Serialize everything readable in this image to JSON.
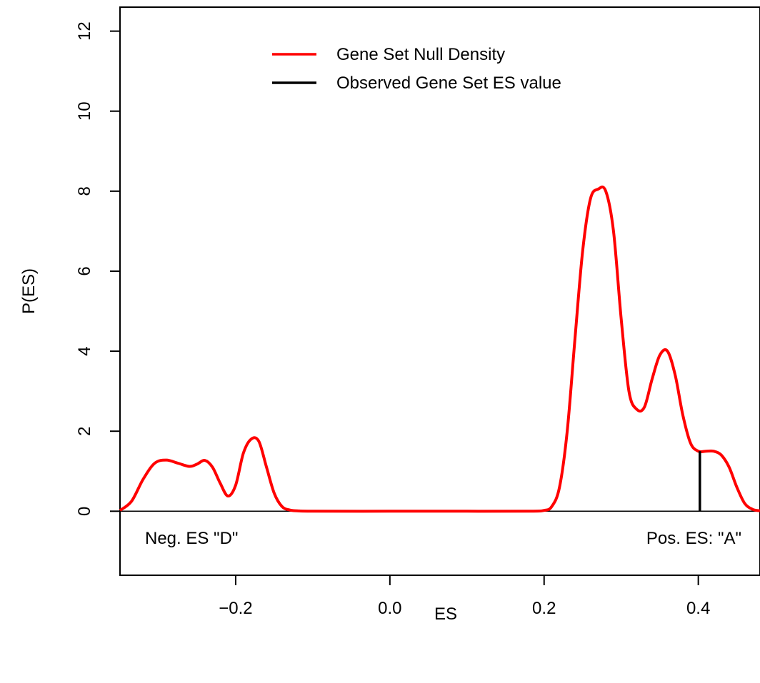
{
  "chart_data": {
    "type": "line",
    "xlabel": "ES",
    "ylabel": "P(ES)",
    "xlim": [
      -0.35,
      0.48
    ],
    "ylim": [
      -1.6,
      12.6
    ],
    "x_ticks": [
      -0.2,
      0.0,
      0.2,
      0.4
    ],
    "x_tick_labels": [
      "−0.2",
      "0.0",
      "0.2",
      "0.4"
    ],
    "y_ticks": [
      0,
      2,
      4,
      6,
      8,
      10,
      12
    ],
    "y_tick_labels": [
      "0",
      "2",
      "4",
      "6",
      "8",
      "10",
      "12"
    ],
    "grid": false,
    "legend_position": "top-center",
    "series": [
      {
        "name": "Gene Set Null Density",
        "color": "#ff0000",
        "x": [
          -0.35,
          -0.335,
          -0.32,
          -0.305,
          -0.29,
          -0.275,
          -0.26,
          -0.25,
          -0.24,
          -0.23,
          -0.22,
          -0.21,
          -0.2,
          -0.19,
          -0.18,
          -0.17,
          -0.16,
          -0.15,
          -0.14,
          -0.13,
          -0.12,
          -0.1,
          0.0,
          0.1,
          0.18,
          0.2,
          0.21,
          0.22,
          0.23,
          0.24,
          0.25,
          0.26,
          0.27,
          0.28,
          0.29,
          0.3,
          0.31,
          0.32,
          0.33,
          0.34,
          0.35,
          0.36,
          0.37,
          0.38,
          0.39,
          0.4,
          0.41,
          0.42,
          0.43,
          0.44,
          0.45,
          0.46,
          0.47,
          0.48
        ],
        "y": [
          0.02,
          0.25,
          0.8,
          1.2,
          1.28,
          1.2,
          1.12,
          1.18,
          1.27,
          1.1,
          0.7,
          0.38,
          0.65,
          1.45,
          1.8,
          1.75,
          1.1,
          0.45,
          0.12,
          0.03,
          0.01,
          0.0,
          0.0,
          0.0,
          0.0,
          0.02,
          0.12,
          0.6,
          2.0,
          4.3,
          6.5,
          7.8,
          8.05,
          8.0,
          7.0,
          4.8,
          3.0,
          2.55,
          2.6,
          3.3,
          3.9,
          4.0,
          3.4,
          2.4,
          1.7,
          1.5,
          1.5,
          1.5,
          1.4,
          1.1,
          0.6,
          0.2,
          0.05,
          0.01
        ]
      },
      {
        "name": "Observed Gene Set ES value",
        "color": "#000000",
        "x": [
          0.402,
          0.402
        ],
        "y": [
          0,
          1.5
        ]
      }
    ],
    "annotations": [
      {
        "text": "Neg. ES \"D\"",
        "position": "bottom-left"
      },
      {
        "text": "Pos. ES: \"A\"",
        "position": "bottom-right"
      }
    ]
  }
}
